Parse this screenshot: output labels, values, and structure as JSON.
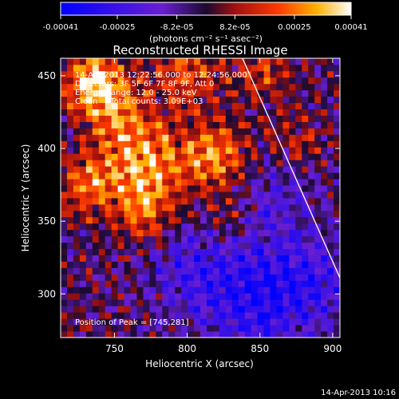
{
  "colorbar": {
    "ticks": [
      "-0.00041",
      "-0.00025",
      "-8.2e-05",
      "8.2e-05",
      "0.00025",
      "0.00041"
    ],
    "unit_label": "(photons cm⁻² s⁻¹ asec⁻²)"
  },
  "plot": {
    "title": "Reconstructed RHESSI Image",
    "xlabel": "Heliocentric X (arcsec)",
    "ylabel": "Heliocentric Y (arcsec)",
    "xticks": [
      "750",
      "800",
      "850",
      "900"
    ],
    "yticks": [
      "300",
      "350",
      "400",
      "450"
    ],
    "info_lines": [
      "14-Apr-2013 12:22:56.000 to 12:24:56.000",
      "Detectors: 3F 5F 6F 7F 8F 9F, Att 0",
      "Energy Range: 12.0 - 25.0 keV",
      "Clean     Total counts: 3.09E+03"
    ],
    "peak_text": "Position of Peak = [745,281]"
  },
  "footer": {
    "timestamp": "14-Apr-2013 10:16"
  },
  "chart_data": {
    "type": "heatmap",
    "title": "Reconstructed RHESSI Image",
    "xlabel": "Heliocentric X (arcsec)",
    "ylabel": "Heliocentric Y (arcsec)",
    "xlim": [
      713,
      905
    ],
    "ylim": [
      270,
      462
    ],
    "zlim": [
      -0.00041,
      0.00041
    ],
    "colorbar_ticks": [
      -0.00041,
      -0.00025,
      -8.2e-05,
      8.2e-05,
      0.00025,
      0.00041
    ],
    "peak": [
      745,
      281
    ],
    "limb_line": [
      [
        838,
        462
      ],
      [
        905,
        311
      ]
    ],
    "grid": false
  }
}
